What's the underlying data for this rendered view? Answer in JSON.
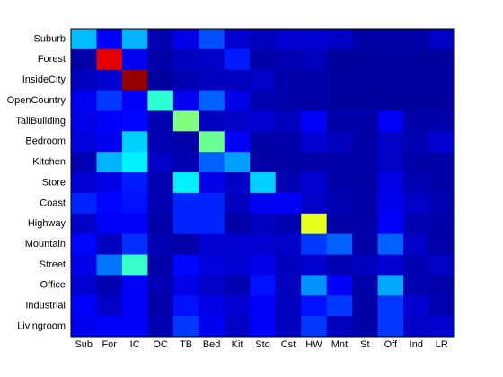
{
  "chart_data": {
    "type": "heatmap",
    "colormap": "jet",
    "rows": [
      "Suburb",
      "Forest",
      "InsideCity",
      "OpenCountry",
      "TallBuilding",
      "Bedroom",
      "Kitchen",
      "Store",
      "Coast",
      "Highway",
      "Mountain",
      "Street",
      "Office",
      "Industrial",
      "Livingroom"
    ],
    "columns": [
      "Sub",
      "For",
      "IC",
      "OC",
      "TB",
      "Bed",
      "Kit",
      "Sto",
      "Cst",
      "HW",
      "Mnt",
      "St",
      "Off",
      "Ind",
      "LR"
    ],
    "values": [
      [
        0.31,
        0.12,
        0.3,
        0.05,
        0.1,
        0.2,
        0.08,
        0.06,
        0.08,
        0.08,
        0.07,
        0.04,
        0.04,
        0.04,
        0.07
      ],
      [
        0.04,
        0.9,
        0.11,
        0.04,
        0.06,
        0.07,
        0.15,
        0.04,
        0.05,
        0.06,
        0.03,
        0.03,
        0.03,
        0.03,
        0.03
      ],
      [
        0.06,
        0.08,
        0.98,
        0.03,
        0.05,
        0.06,
        0.06,
        0.07,
        0.04,
        0.04,
        0.03,
        0.03,
        0.03,
        0.03,
        0.03
      ],
      [
        0.11,
        0.18,
        0.12,
        0.42,
        0.11,
        0.22,
        0.1,
        0.05,
        0.04,
        0.04,
        0.03,
        0.03,
        0.03,
        0.03,
        0.03
      ],
      [
        0.1,
        0.12,
        0.13,
        0.05,
        0.5,
        0.06,
        0.07,
        0.08,
        0.06,
        0.12,
        0.04,
        0.04,
        0.12,
        0.04,
        0.04
      ],
      [
        0.09,
        0.11,
        0.33,
        0.05,
        0.04,
        0.48,
        0.12,
        0.04,
        0.04,
        0.08,
        0.06,
        0.04,
        0.07,
        0.05,
        0.08
      ],
      [
        0.05,
        0.3,
        0.36,
        0.07,
        0.05,
        0.22,
        0.28,
        0.04,
        0.04,
        0.04,
        0.04,
        0.04,
        0.07,
        0.04,
        0.04
      ],
      [
        0.08,
        0.1,
        0.15,
        0.05,
        0.36,
        0.1,
        0.07,
        0.33,
        0.05,
        0.08,
        0.04,
        0.04,
        0.1,
        0.05,
        0.04
      ],
      [
        0.16,
        0.13,
        0.14,
        0.05,
        0.16,
        0.16,
        0.06,
        0.11,
        0.12,
        0.07,
        0.05,
        0.04,
        0.11,
        0.07,
        0.05
      ],
      [
        0.07,
        0.12,
        0.12,
        0.04,
        0.16,
        0.16,
        0.04,
        0.06,
        0.05,
        0.6,
        0.04,
        0.04,
        0.12,
        0.05,
        0.04
      ],
      [
        0.13,
        0.06,
        0.17,
        0.05,
        0.04,
        0.08,
        0.08,
        0.08,
        0.07,
        0.18,
        0.22,
        0.04,
        0.22,
        0.07,
        0.04
      ],
      [
        0.1,
        0.24,
        0.43,
        0.04,
        0.13,
        0.09,
        0.08,
        0.1,
        0.06,
        0.08,
        0.05,
        0.06,
        0.08,
        0.05,
        0.07
      ],
      [
        0.08,
        0.05,
        0.12,
        0.05,
        0.1,
        0.07,
        0.05,
        0.14,
        0.06,
        0.27,
        0.12,
        0.04,
        0.29,
        0.05,
        0.04
      ],
      [
        0.12,
        0.07,
        0.12,
        0.04,
        0.14,
        0.1,
        0.08,
        0.12,
        0.06,
        0.14,
        0.18,
        0.04,
        0.18,
        0.08,
        0.05
      ],
      [
        0.11,
        0.12,
        0.12,
        0.05,
        0.18,
        0.11,
        0.07,
        0.12,
        0.06,
        0.18,
        0.06,
        0.04,
        0.18,
        0.07,
        0.08
      ]
    ]
  }
}
